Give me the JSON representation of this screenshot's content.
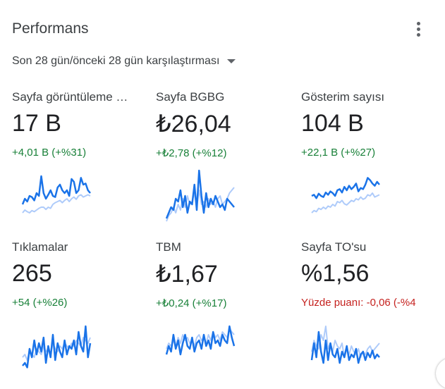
{
  "card": {
    "title": "Performans",
    "menu_icon": "more-vert-icon",
    "comparison_label": "Son 28 gün/önceki 28 gün karşılaştırması",
    "dropdown_icon": "arrow-drop-down-icon"
  },
  "colors": {
    "current": "#1a73e8",
    "previous": "#aecbfa",
    "positive": "#188038",
    "negative": "#c5221f"
  },
  "metrics": [
    {
      "label": "Sayfa görüntüleme …",
      "value": "17 B",
      "delta": "+4,01 B (+%31)",
      "trend": "positive",
      "current": [
        0.35,
        0.45,
        0.4,
        0.5,
        0.48,
        0.42,
        0.55,
        0.5,
        0.85,
        0.55,
        0.45,
        0.52,
        0.6,
        0.5,
        0.48,
        0.65,
        0.7,
        0.6,
        0.55,
        0.6,
        0.5,
        0.8,
        0.75,
        0.55,
        0.6,
        0.82,
        0.7,
        0.72,
        0.6,
        0.55
      ],
      "previous": [
        0.2,
        0.25,
        0.22,
        0.2,
        0.24,
        0.22,
        0.25,
        0.28,
        0.3,
        0.3,
        0.26,
        0.3,
        0.28,
        0.35,
        0.38,
        0.4,
        0.42,
        0.38,
        0.42,
        0.45,
        0.4,
        0.45,
        0.48,
        0.44,
        0.5,
        0.52,
        0.48,
        0.5,
        0.52,
        0.5
      ]
    },
    {
      "label": "Sayfa BGBG",
      "value": "₺26,04",
      "delta": "+₺2,78 (+%12)",
      "trend": "positive",
      "current": [
        0.1,
        0.2,
        0.3,
        0.25,
        0.45,
        0.4,
        0.6,
        0.3,
        0.5,
        0.2,
        0.4,
        0.35,
        0.7,
        0.25,
        0.95,
        0.5,
        0.2,
        0.55,
        0.3,
        0.45,
        0.35,
        0.5,
        0.4,
        0.3,
        0.35,
        0.25,
        0.45,
        0.4,
        0.35,
        0.3
      ],
      "previous": [
        0.05,
        0.15,
        0.2,
        0.3,
        0.2,
        0.35,
        0.25,
        0.45,
        0.3,
        0.5,
        0.35,
        0.4,
        0.55,
        0.3,
        0.6,
        0.35,
        0.4,
        0.3,
        0.45,
        0.35,
        0.4,
        0.3,
        0.45,
        0.5,
        0.35,
        0.4,
        0.45,
        0.55,
        0.6,
        0.65
      ]
    },
    {
      "label": "Gösterim sayısı",
      "value": "104 B",
      "delta": "+22,1 B (+%27)",
      "trend": "positive",
      "current": [
        0.5,
        0.52,
        0.46,
        0.54,
        0.5,
        0.48,
        0.56,
        0.52,
        0.58,
        0.55,
        0.5,
        0.6,
        0.62,
        0.56,
        0.66,
        0.6,
        0.68,
        0.62,
        0.66,
        0.72,
        0.58,
        0.64,
        0.62,
        0.7,
        0.82,
        0.78,
        0.72,
        0.68,
        0.75,
        0.7
      ],
      "previous": [
        0.2,
        0.24,
        0.22,
        0.28,
        0.26,
        0.3,
        0.27,
        0.32,
        0.3,
        0.35,
        0.32,
        0.4,
        0.38,
        0.42,
        0.36,
        0.34,
        0.38,
        0.42,
        0.4,
        0.45,
        0.43,
        0.48,
        0.44,
        0.46,
        0.52,
        0.5,
        0.55,
        0.48,
        0.5,
        0.52
      ]
    },
    {
      "label": "Tıklamalar",
      "value": "265",
      "delta": "+54 (+%26)",
      "trend": "positive",
      "current": [
        0.15,
        0.2,
        0.12,
        0.45,
        0.3,
        0.6,
        0.35,
        0.55,
        0.4,
        0.65,
        0.2,
        0.5,
        0.3,
        0.7,
        0.25,
        0.55,
        0.4,
        0.3,
        0.6,
        0.35,
        0.5,
        0.45,
        0.6,
        0.35,
        0.75,
        0.5,
        0.4,
        0.85,
        0.3,
        0.55
      ],
      "previous": [
        0.3,
        0.35,
        0.25,
        0.4,
        0.35,
        0.3,
        0.45,
        0.4,
        0.35,
        0.5,
        0.4,
        0.45,
        0.35,
        0.55,
        0.45,
        0.4,
        0.5,
        0.45,
        0.55,
        0.5,
        0.45,
        0.55,
        0.5,
        0.6,
        0.55,
        0.5,
        0.65,
        0.6,
        0.55,
        0.65
      ]
    },
    {
      "label": "TBM",
      "value": "₺1,67",
      "delta": "+₺0,24 (+%17)",
      "trend": "positive",
      "current": [
        0.35,
        0.5,
        0.4,
        0.7,
        0.45,
        0.6,
        0.35,
        0.55,
        0.7,
        0.5,
        0.45,
        0.65,
        0.4,
        0.55,
        0.6,
        0.45,
        0.7,
        0.5,
        0.6,
        0.45,
        0.75,
        0.55,
        0.6,
        0.5,
        0.7,
        0.6,
        0.55,
        0.85,
        0.65,
        0.5
      ],
      "previous": [
        0.45,
        0.55,
        0.5,
        0.6,
        0.5,
        0.65,
        0.55,
        0.7,
        0.6,
        0.65,
        0.55,
        0.6,
        0.5,
        0.65,
        0.7,
        0.6,
        0.65,
        0.55,
        0.7,
        0.6,
        0.75,
        0.65,
        0.7,
        0.6,
        0.75,
        0.7,
        0.65,
        0.8,
        0.75,
        0.7
      ]
    },
    {
      "label": "Sayfa TO'su",
      "value": "%1,56",
      "delta": "Yüzde puanı: -0,06 (-%4",
      "trend": "negative",
      "current": [
        0.25,
        0.55,
        0.3,
        0.75,
        0.4,
        0.2,
        0.6,
        0.25,
        0.55,
        0.35,
        0.3,
        0.45,
        0.2,
        0.4,
        0.3,
        0.5,
        0.25,
        0.35,
        0.3,
        0.45,
        0.2,
        0.35,
        0.4,
        0.25,
        0.38,
        0.3,
        0.42,
        0.28,
        0.35,
        0.3
      ],
      "previous": [
        0.4,
        0.6,
        0.5,
        0.45,
        0.7,
        0.6,
        0.85,
        0.45,
        0.55,
        0.4,
        0.6,
        0.5,
        0.45,
        0.55,
        0.3,
        0.45,
        0.35,
        0.5,
        0.4,
        0.35,
        0.45,
        0.3,
        0.4,
        0.35,
        0.45,
        0.5,
        0.4,
        0.45,
        0.5,
        0.55
      ]
    }
  ]
}
